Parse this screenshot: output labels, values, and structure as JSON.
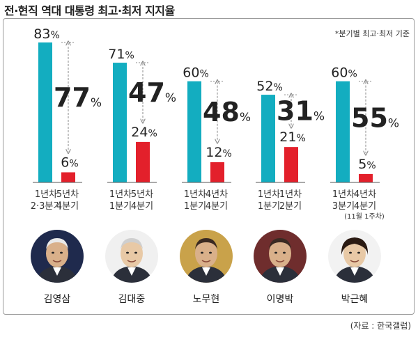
{
  "title": "전·현직 역대 대통령 최고·최저 지지율",
  "note": "*분기별 최고·최저 기준",
  "source": "(자료 : 한국갤럽)",
  "colors": {
    "high": "#13adc0",
    "low": "#e3202b",
    "arrow": "#888888"
  },
  "chart_data": {
    "type": "bar",
    "title": "전·현직 역대 대통령 최고·최저 지지율",
    "unit": "%",
    "ylim": [
      0,
      90
    ],
    "groups": [
      {
        "president": "김영삼",
        "high": 83,
        "low": 6,
        "gap": 77,
        "high_label": [
          "1년차",
          "2·3분기"
        ],
        "low_label": [
          "5년차",
          "4분기"
        ],
        "low_extra": ""
      },
      {
        "president": "김대중",
        "high": 71,
        "low": 24,
        "gap": 47,
        "high_label": [
          "1년차",
          "1분기"
        ],
        "low_label": [
          "5년차",
          "4분기"
        ],
        "low_extra": ""
      },
      {
        "president": "노무현",
        "high": 60,
        "low": 12,
        "gap": 48,
        "high_label": [
          "1년차",
          "1분기"
        ],
        "low_label": [
          "4년차",
          "4분기"
        ],
        "low_extra": ""
      },
      {
        "president": "이명박",
        "high": 52,
        "low": 21,
        "gap": 31,
        "high_label": [
          "1년차",
          "1분기"
        ],
        "low_label": [
          "1년차",
          "2분기"
        ],
        "low_extra": ""
      },
      {
        "president": "박근혜",
        "high": 60,
        "low": 5,
        "gap": 55,
        "high_label": [
          "1년차",
          "3분기"
        ],
        "low_label": [
          "4년차",
          "4분기"
        ],
        "low_extra": "(11월 1주차)"
      }
    ]
  },
  "portraits": [
    {
      "name": "김영삼",
      "icon": "portrait-icon",
      "bg": "#1f2a4d"
    },
    {
      "name": "김대중",
      "icon": "portrait-icon",
      "bg": "#f0f0f0"
    },
    {
      "name": "노무현",
      "icon": "portrait-icon",
      "bg": "#c9a24a"
    },
    {
      "name": "이명박",
      "icon": "portrait-icon",
      "bg": "#6f2d2d"
    },
    {
      "name": "박근혜",
      "icon": "portrait-icon",
      "bg": "#f2f2f2"
    }
  ]
}
